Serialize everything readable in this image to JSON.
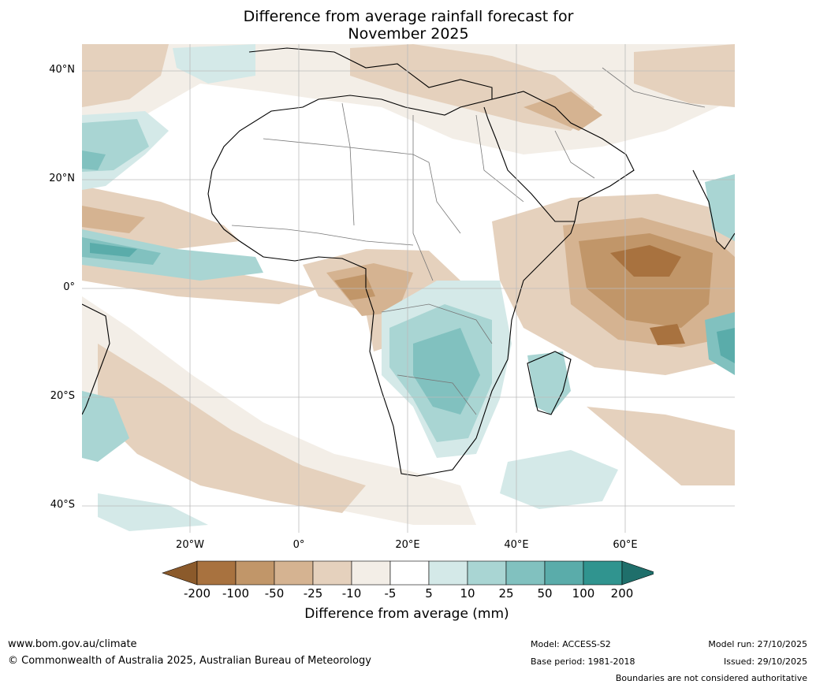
{
  "title": {
    "line1": "Difference from average rainfall forecast for",
    "line2": "November 2025"
  },
  "map": {
    "region": "Africa",
    "lat_labels": [
      "40°N",
      "20°N",
      "0°",
      "20°S",
      "40°S"
    ],
    "lon_labels": [
      "20°W",
      "0°",
      "20°E",
      "40°E",
      "60°E"
    ]
  },
  "colorbar": {
    "title": "Difference from average (mm)",
    "tick_labels": [
      "-200",
      "-100",
      "-50",
      "-25",
      "-10",
      "-5",
      "5",
      "10",
      "25",
      "50",
      "100",
      "200"
    ],
    "colors": [
      "#8b5a2b",
      "#a8723f",
      "#c19669",
      "#d5b391",
      "#e5d1bd",
      "#f3eee7",
      "#ffffff",
      "#d4e9e8",
      "#a9d5d3",
      "#81c1bf",
      "#5aacaa",
      "#30948f",
      "#1f6f6b"
    ]
  },
  "footer": {
    "website": "www.bom.gov.au/climate",
    "copyright": "© Commonwealth of Australia 2025, Australian Bureau of Meteorology",
    "model": "Model: ACCESS-S2",
    "base_period": "Base period: 1981-2018",
    "model_run": "Model run: 27/10/2025",
    "issued": "Issued: 29/10/2025",
    "disclaimer": "Boundaries are not considered authoritative"
  }
}
